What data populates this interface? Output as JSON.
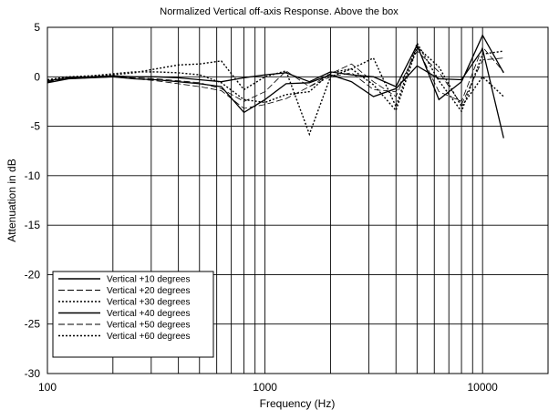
{
  "chart_data": {
    "type": "line",
    "title": "Normalized Vertical off-axis Response. Above the box",
    "xlabel": "Frequency (Hz)",
    "ylabel": "Attenuation in dB",
    "x_scale": "log",
    "xlim": [
      100,
      20000
    ],
    "ylim": [
      -30,
      5
    ],
    "grid": true,
    "legend_position": "bottom-left",
    "x_ticks": [
      100,
      1000,
      10000
    ],
    "x_tick_labels": [
      "100",
      "1000",
      "10000"
    ],
    "x_gridlines": [
      200,
      300,
      400,
      500,
      600,
      700,
      800,
      900,
      1000,
      2000,
      3000,
      4000,
      5000,
      6000,
      7000,
      8000,
      9000,
      10000
    ],
    "y_ticks": [
      5,
      0,
      -5,
      -10,
      -15,
      -20,
      -25,
      -30
    ],
    "y_tick_labels": [
      "5",
      "0",
      "-5",
      "-10",
      "-15",
      "-20",
      "-25",
      "-30"
    ],
    "x": [
      100,
      125,
      160,
      200,
      250,
      315,
      400,
      500,
      630,
      800,
      1000,
      1250,
      1600,
      2000,
      2500,
      3150,
      4000,
      5000,
      6300,
      8000,
      10000,
      12500
    ],
    "series": [
      {
        "name": "Vertical +10 degrees",
        "style": "solid",
        "values": [
          -0.4,
          -0.1,
          0.0,
          0.1,
          0.0,
          0.0,
          -0.1,
          -0.3,
          -0.5,
          -0.1,
          0.2,
          0.4,
          -0.5,
          0.5,
          0.2,
          0.0,
          -1.0,
          3.2,
          -2.3,
          -0.5,
          4.2,
          0.4
        ]
      },
      {
        "name": "Vertical +20 degrees",
        "style": "dashed",
        "values": [
          -0.5,
          -0.2,
          -0.1,
          0.0,
          -0.1,
          -0.2,
          -0.4,
          -0.6,
          -1.2,
          -2.5,
          -1.5,
          0.6,
          -1.0,
          0.3,
          1.3,
          -0.5,
          -2.0,
          3.0,
          -1.5,
          -2.5,
          3.0,
          0.5
        ]
      },
      {
        "name": "Vertical +30 degrees",
        "style": "dotted",
        "values": [
          -0.3,
          0.0,
          0.1,
          0.2,
          0.4,
          0.8,
          1.2,
          1.3,
          1.6,
          -1.3,
          0.0,
          0.6,
          -5.8,
          0.0,
          0.8,
          1.9,
          -3.0,
          3.4,
          -0.4,
          -3.5,
          2.3,
          2.6
        ]
      },
      {
        "name": "Vertical +40 degrees",
        "style": "solid",
        "values": [
          -0.6,
          -0.2,
          -0.1,
          0.0,
          -0.2,
          -0.3,
          -0.5,
          -0.7,
          -1.0,
          -3.6,
          -2.3,
          -0.7,
          -0.6,
          0.2,
          -0.5,
          -2.0,
          -1.2,
          1.1,
          -0.2,
          -0.3,
          2.8,
          -6.2
        ]
      },
      {
        "name": "Vertical +50 degrees",
        "style": "dashed",
        "values": [
          -0.5,
          -0.2,
          -0.1,
          0.0,
          -0.2,
          -0.4,
          -0.7,
          -1.0,
          -1.4,
          -3.2,
          -2.8,
          -2.2,
          -1.0,
          0.0,
          0.4,
          -1.3,
          -1.5,
          2.6,
          0.5,
          -2.8,
          1.7,
          1.9
        ]
      },
      {
        "name": "Vertical +60 degrees",
        "style": "dotted",
        "values": [
          -0.4,
          -0.1,
          0.1,
          0.3,
          0.5,
          0.5,
          0.4,
          0.2,
          -0.6,
          -2.3,
          -2.6,
          -1.8,
          -1.5,
          0.4,
          0.8,
          -0.8,
          -3.4,
          3.0,
          1.0,
          -3.0,
          0.0,
          -2.0
        ]
      }
    ]
  }
}
